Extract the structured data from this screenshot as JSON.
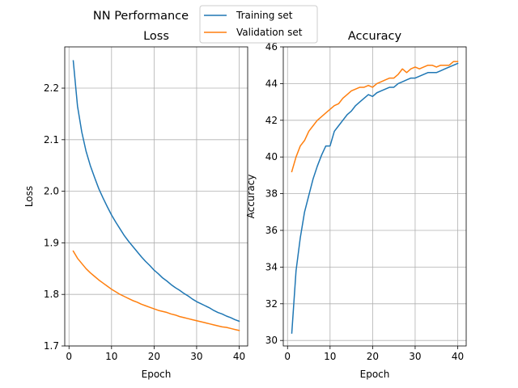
{
  "figure": {
    "title": "NN Performance"
  },
  "legend": {
    "placement": "top-center",
    "entries": [
      {
        "label": "Training set",
        "color": "#1f77b4"
      },
      {
        "label": "Validation set",
        "color": "#ff7f0e"
      }
    ]
  },
  "chart_data": [
    {
      "type": "line",
      "title": "Loss",
      "xlabel": "Epoch",
      "ylabel": "Loss",
      "xlim": [
        -1,
        42
      ],
      "ylim": [
        1.7,
        2.28
      ],
      "xticks": [
        0,
        10,
        20,
        30,
        40
      ],
      "yticks": [
        1.7,
        1.8,
        1.9,
        2.0,
        2.1,
        2.2
      ],
      "ytick_labels": [
        "1.7",
        "1.8",
        "1.9",
        "2.0",
        "2.1",
        "2.2"
      ],
      "grid": true,
      "x": [
        1,
        2,
        3,
        4,
        5,
        6,
        7,
        8,
        9,
        10,
        11,
        12,
        13,
        14,
        15,
        16,
        17,
        18,
        19,
        20,
        21,
        22,
        23,
        24,
        25,
        26,
        27,
        28,
        29,
        30,
        31,
        32,
        33,
        34,
        35,
        36,
        37,
        38,
        39,
        40
      ],
      "series": [
        {
          "name": "Training set",
          "color": "#1f77b4",
          "values": [
            2.253,
            2.165,
            2.115,
            2.078,
            2.05,
            2.027,
            2.005,
            1.987,
            1.97,
            1.954,
            1.94,
            1.927,
            1.914,
            1.903,
            1.893,
            1.883,
            1.873,
            1.864,
            1.856,
            1.847,
            1.84,
            1.832,
            1.826,
            1.819,
            1.813,
            1.808,
            1.802,
            1.797,
            1.791,
            1.786,
            1.782,
            1.778,
            1.774,
            1.769,
            1.765,
            1.762,
            1.758,
            1.755,
            1.751,
            1.748
          ]
        },
        {
          "name": "Validation set",
          "color": "#ff7f0e",
          "values": [
            1.884,
            1.87,
            1.86,
            1.85,
            1.842,
            1.835,
            1.828,
            1.822,
            1.816,
            1.81,
            1.805,
            1.8,
            1.796,
            1.792,
            1.788,
            1.785,
            1.781,
            1.778,
            1.775,
            1.772,
            1.769,
            1.767,
            1.765,
            1.762,
            1.76,
            1.757,
            1.755,
            1.753,
            1.751,
            1.749,
            1.747,
            1.745,
            1.743,
            1.741,
            1.739,
            1.737,
            1.736,
            1.734,
            1.732,
            1.73
          ]
        }
      ]
    },
    {
      "type": "line",
      "title": "Accuracy",
      "xlabel": "Epoch",
      "ylabel": "Accuracy",
      "xlim": [
        -1,
        42
      ],
      "ylim": [
        29.7,
        46.0
      ],
      "xticks": [
        0,
        10,
        20,
        30,
        40
      ],
      "yticks": [
        30,
        32,
        34,
        36,
        38,
        40,
        42,
        44,
        46
      ],
      "ytick_labels": [
        "30",
        "32",
        "34",
        "36",
        "38",
        "40",
        "42",
        "44",
        "46"
      ],
      "grid": true,
      "x": [
        1,
        2,
        3,
        4,
        5,
        6,
        7,
        8,
        9,
        10,
        11,
        12,
        13,
        14,
        15,
        16,
        17,
        18,
        19,
        20,
        21,
        22,
        23,
        24,
        25,
        26,
        27,
        28,
        29,
        30,
        31,
        32,
        33,
        34,
        35,
        36,
        37,
        38,
        39,
        40
      ],
      "series": [
        {
          "name": "Training set",
          "color": "#1f77b4",
          "values": [
            30.4,
            33.8,
            35.6,
            37.0,
            37.9,
            38.8,
            39.5,
            40.1,
            40.6,
            40.6,
            41.4,
            41.7,
            42.0,
            42.3,
            42.5,
            42.8,
            43.0,
            43.2,
            43.4,
            43.3,
            43.5,
            43.6,
            43.7,
            43.8,
            43.8,
            44.0,
            44.1,
            44.2,
            44.3,
            44.3,
            44.4,
            44.5,
            44.6,
            44.6,
            44.6,
            44.7,
            44.8,
            44.9,
            45.0,
            45.1
          ]
        },
        {
          "name": "Validation set",
          "color": "#ff7f0e",
          "values": [
            39.2,
            40.0,
            40.6,
            40.9,
            41.4,
            41.7,
            42.0,
            42.2,
            42.4,
            42.6,
            42.8,
            42.9,
            43.2,
            43.4,
            43.6,
            43.7,
            43.8,
            43.8,
            43.9,
            43.8,
            44.0,
            44.1,
            44.2,
            44.3,
            44.3,
            44.5,
            44.8,
            44.6,
            44.8,
            44.9,
            44.8,
            44.9,
            45.0,
            45.0,
            44.9,
            45.0,
            45.0,
            45.0,
            45.2,
            45.2
          ]
        }
      ]
    }
  ]
}
